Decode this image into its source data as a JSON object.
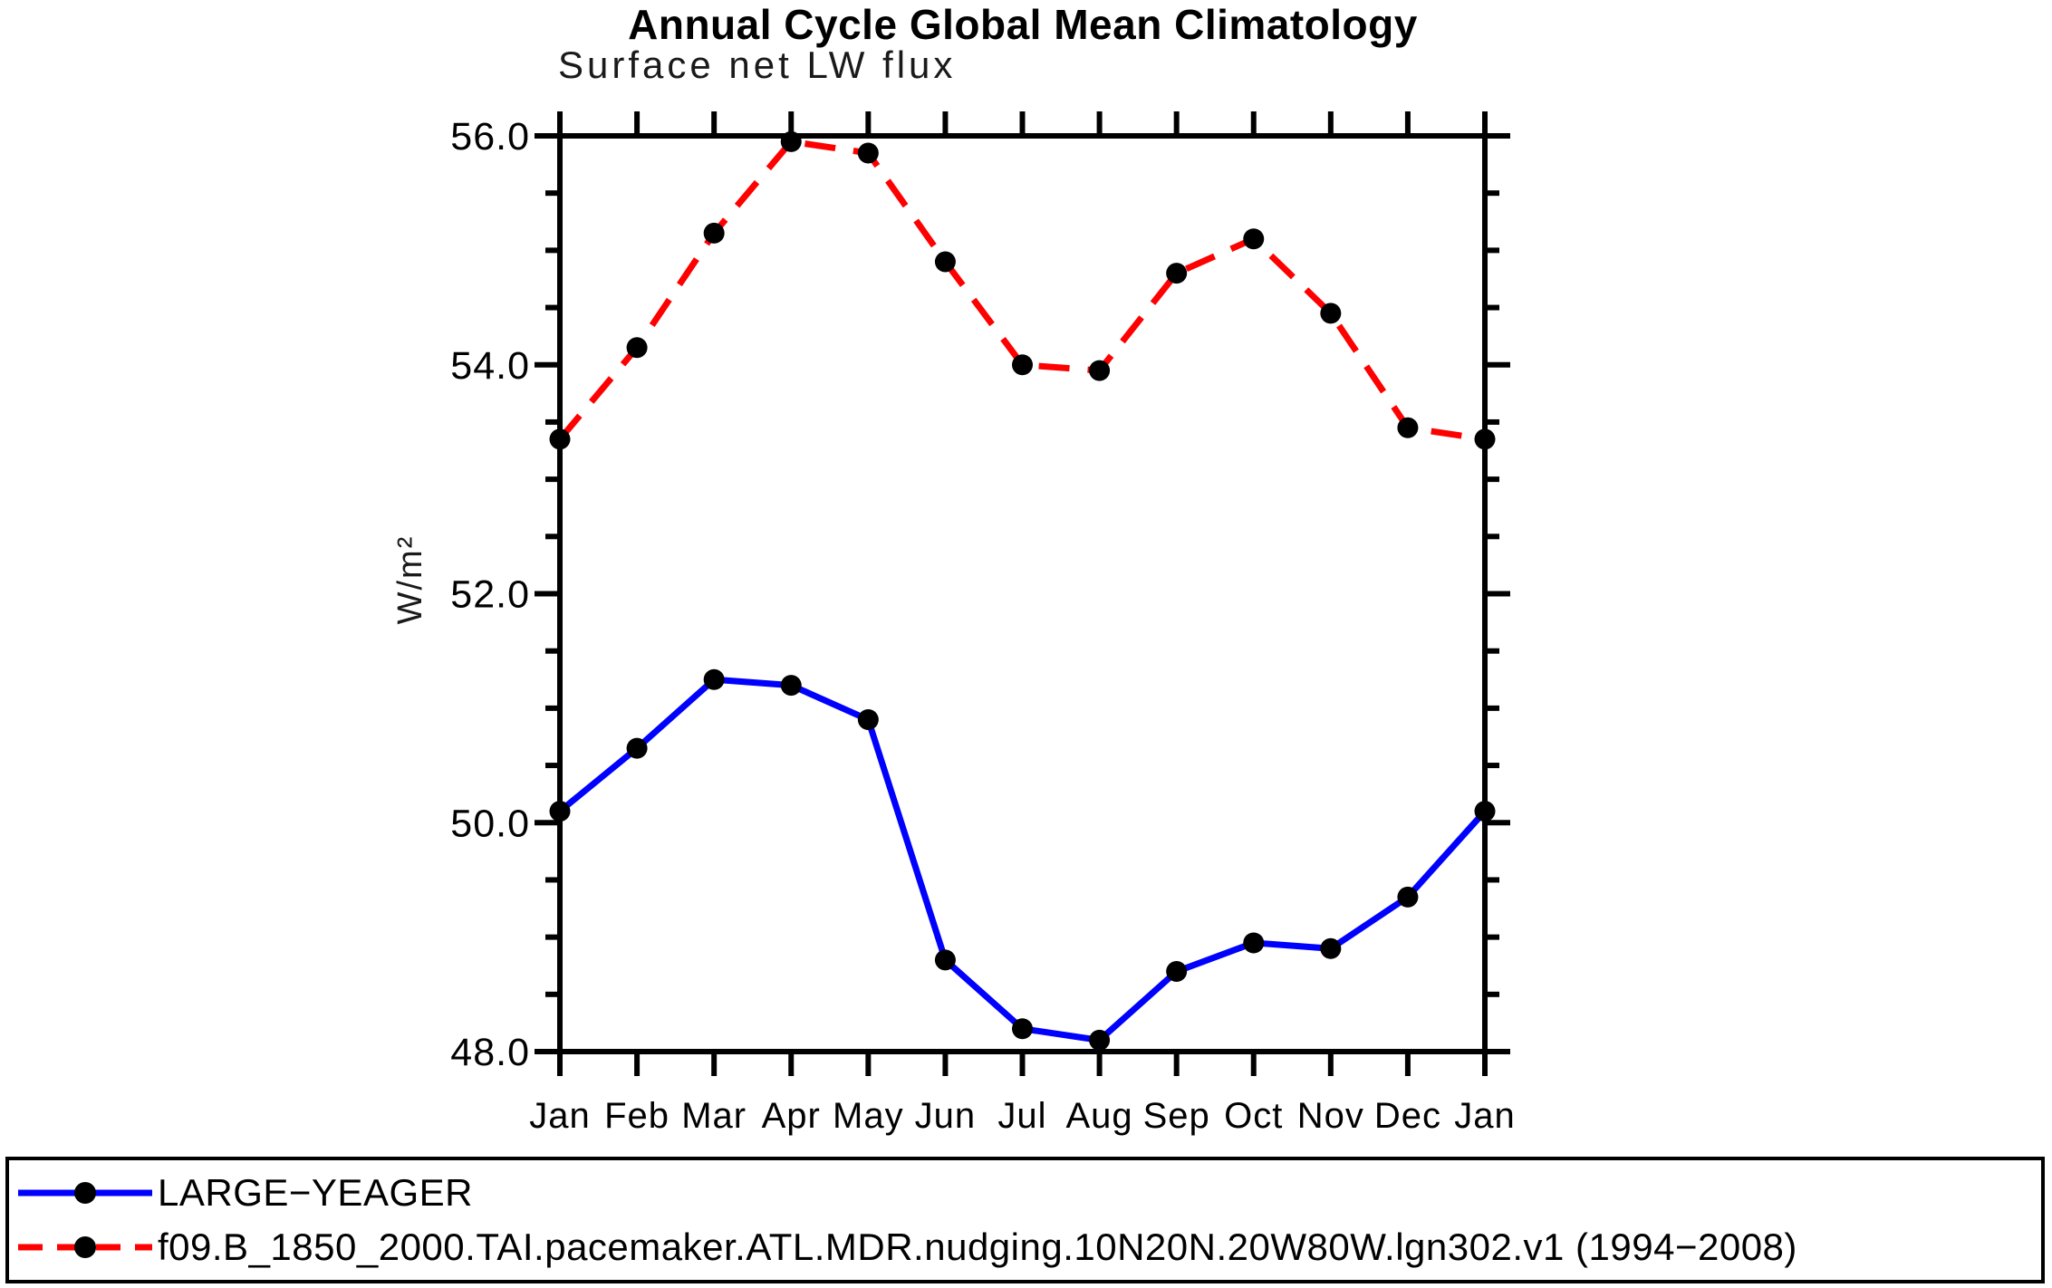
{
  "chart_data": {
    "type": "line",
    "title": "Annual Cycle Global Mean Climatology",
    "subtitle": "Surface net LW flux",
    "xlabel": "",
    "ylabel": "W/m²",
    "categories": [
      "Jan",
      "Feb",
      "Mar",
      "Apr",
      "May",
      "Jun",
      "Jul",
      "Aug",
      "Sep",
      "Oct",
      "Nov",
      "Dec",
      "Jan"
    ],
    "ylim": [
      48.0,
      56.0
    ],
    "ytick_major": [
      48.0,
      50.0,
      52.0,
      54.0,
      56.0
    ],
    "ytick_major_labels": [
      "48.0",
      "50.0",
      "52.0",
      "54.0",
      "56.0"
    ],
    "ytick_minor_step": 0.5,
    "grid": false,
    "legend_position": "bottom-outside",
    "axis_color": "#000000",
    "series": [
      {
        "name": "LARGE−YEAGER",
        "color": "#0000ff",
        "line_style": "solid",
        "marker": "circle",
        "marker_color": "#000000",
        "values": [
          50.1,
          50.65,
          51.25,
          51.2,
          50.9,
          48.8,
          48.2,
          48.1,
          48.7,
          48.95,
          48.9,
          49.35,
          50.1
        ]
      },
      {
        "name": "f09.B_1850_2000.TAI.pacemaker.ATL.MDR.nudging.10N20N.20W80W.lgn302.v1 (1994−2008)",
        "color": "#ff0000",
        "line_style": "dashed",
        "marker": "circle",
        "marker_color": "#000000",
        "values": [
          53.35,
          54.15,
          55.15,
          55.95,
          55.85,
          54.9,
          54.0,
          53.95,
          54.8,
          55.1,
          54.45,
          53.45,
          53.35
        ]
      }
    ]
  }
}
